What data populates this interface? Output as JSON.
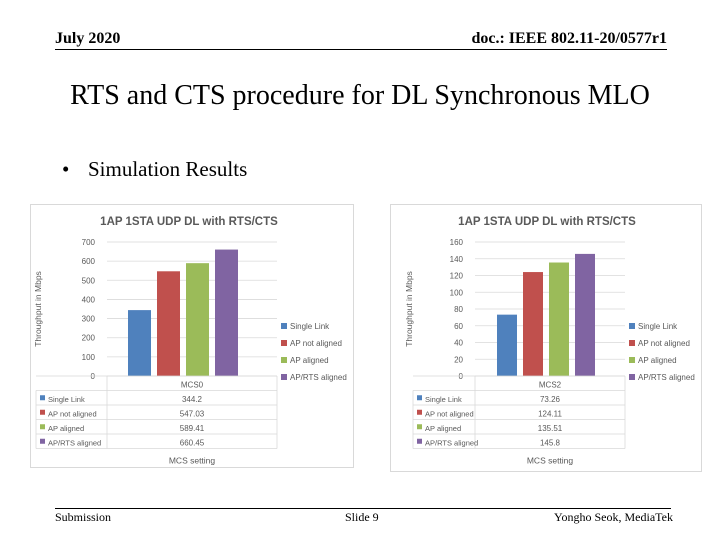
{
  "header": {
    "date": "July 2020",
    "doc_id": "doc.: IEEE 802.11-20/0577r1"
  },
  "slide": {
    "title": "RTS and CTS procedure for DL Synchronous MLO",
    "bullet": "Simulation Results"
  },
  "footer": {
    "left": "Submission",
    "center": "Slide 9",
    "right": "Yongho Seok, MediaTek"
  },
  "chart_data": [
    {
      "type": "bar",
      "title": "1AP 1STA UDP DL with RTS/CTS",
      "xlabel": "MCS setting",
      "ylabel": "Throughput in Mbps",
      "ylim": [
        0,
        700
      ],
      "yticks": [
        0,
        100,
        200,
        300,
        400,
        500,
        600,
        700
      ],
      "categories": [
        "MCS0"
      ],
      "legend_position": "right",
      "series": [
        {
          "name": "Single Link",
          "color": "#4f81bd",
          "values": [
            344.2
          ],
          "label": "344.2"
        },
        {
          "name": "AP not aligned",
          "color": "#c0504d",
          "values": [
            547.03
          ],
          "label": "547.03"
        },
        {
          "name": "AP aligned",
          "color": "#9bbb59",
          "values": [
            589.41
          ],
          "label": "589.41"
        },
        {
          "name": "AP/RTS aligned",
          "color": "#8064a2",
          "values": [
            660.45
          ],
          "label": "660.45"
        }
      ]
    },
    {
      "type": "bar",
      "title": "1AP 1STA UDP DL with RTS/CTS",
      "xlabel": "MCS setting",
      "ylabel": "Throughput in Mbps",
      "ylim": [
        0,
        160
      ],
      "yticks": [
        0,
        20,
        40,
        60,
        80,
        100,
        120,
        140,
        160
      ],
      "categories": [
        "MCS2"
      ],
      "legend_position": "right",
      "series": [
        {
          "name": "Single Link",
          "color": "#4f81bd",
          "values": [
            73.26
          ],
          "label": "73.26"
        },
        {
          "name": "AP not aligned",
          "color": "#c0504d",
          "values": [
            124.11
          ],
          "label": "124.11"
        },
        {
          "name": "AP aligned",
          "color": "#9bbb59",
          "values": [
            135.51
          ],
          "label": "135.51"
        },
        {
          "name": "AP/RTS aligned",
          "color": "#8064a2",
          "values": [
            145.8
          ],
          "label": "145.8"
        }
      ]
    }
  ]
}
